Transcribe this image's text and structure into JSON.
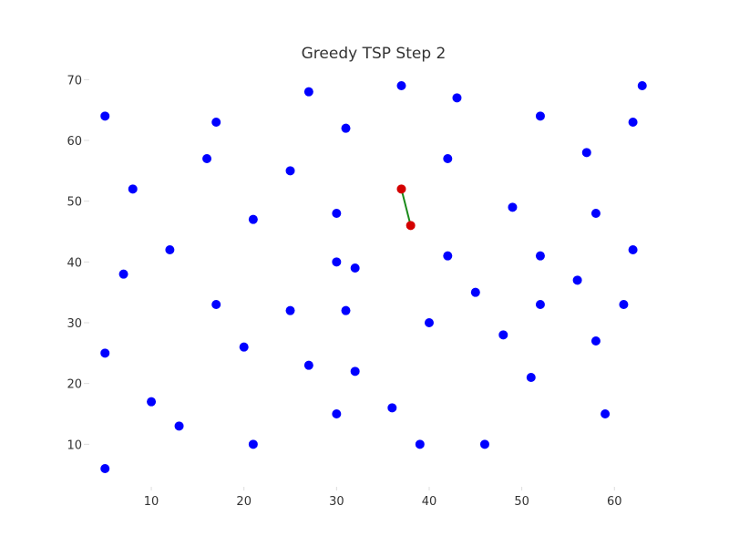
{
  "chart_data": {
    "type": "scatter",
    "title": "Greedy TSP Step 2",
    "xlabel": "",
    "ylabel": "",
    "xlim": [
      3.5,
      64.5
    ],
    "ylim": [
      3.0,
      72.0
    ],
    "x_ticks": [
      10,
      20,
      30,
      40,
      50,
      60
    ],
    "y_ticks": [
      10,
      20,
      30,
      40,
      50,
      60,
      70
    ],
    "grid": false,
    "colors": {
      "cities": "#0000ff",
      "visited": "#d40000",
      "path": "#1a8a1a",
      "text": "#333333"
    },
    "series": [
      {
        "role": "cities",
        "points": [
          [
            5,
            64
          ],
          [
            17,
            63
          ],
          [
            27,
            68
          ],
          [
            31,
            62
          ],
          [
            37,
            69
          ],
          [
            43,
            67
          ],
          [
            52,
            64
          ],
          [
            63,
            69
          ],
          [
            62,
            63
          ],
          [
            16,
            57
          ],
          [
            25,
            55
          ],
          [
            42,
            57
          ],
          [
            57,
            58
          ],
          [
            8,
            52
          ],
          [
            21,
            47
          ],
          [
            30,
            48
          ],
          [
            49,
            49
          ],
          [
            58,
            48
          ],
          [
            12,
            42
          ],
          [
            7,
            38
          ],
          [
            30,
            40
          ],
          [
            32,
            39
          ],
          [
            42,
            41
          ],
          [
            52,
            41
          ],
          [
            62,
            42
          ],
          [
            56,
            37
          ],
          [
            45,
            35
          ],
          [
            17,
            33
          ],
          [
            25,
            32
          ],
          [
            31,
            32
          ],
          [
            40,
            30
          ],
          [
            52,
            33
          ],
          [
            61,
            33
          ],
          [
            48,
            28
          ],
          [
            58,
            27
          ],
          [
            5,
            25
          ],
          [
            20,
            26
          ],
          [
            27,
            23
          ],
          [
            32,
            22
          ],
          [
            51,
            21
          ],
          [
            10,
            17
          ],
          [
            13,
            13
          ],
          [
            36,
            16
          ],
          [
            30,
            15
          ],
          [
            59,
            15
          ],
          [
            21,
            10
          ],
          [
            39,
            10
          ],
          [
            46,
            10
          ],
          [
            5,
            6
          ]
        ]
      },
      {
        "role": "visited",
        "points": [
          [
            37,
            52
          ],
          [
            38,
            46
          ]
        ]
      }
    ],
    "path": [
      [
        37,
        52
      ],
      [
        38,
        46
      ]
    ]
  }
}
